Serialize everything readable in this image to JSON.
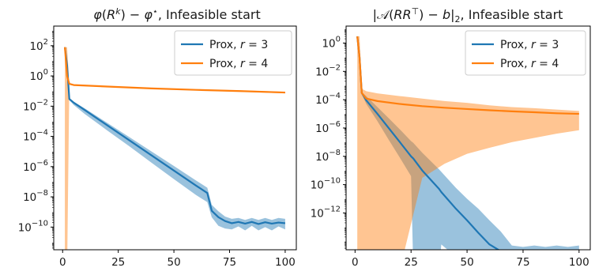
{
  "chart_data": [
    {
      "type": "line",
      "title": "φ(R^k) − φ*, Infeasible start",
      "xlabel": "",
      "ylabel": "",
      "yscale": "log",
      "xlim": [
        -4,
        105
      ],
      "ylim_log10": [
        -11.5,
        3.3
      ],
      "xticks": [
        0,
        25,
        50,
        75,
        100
      ],
      "yticks_log10": [
        2,
        0,
        -2,
        -4,
        -6,
        -8,
        -10
      ],
      "grid": false,
      "legend_position": "upper right",
      "series": [
        {
          "name": "Prox, r = 3",
          "color": "#1f77b4",
          "band_alpha": 0.45,
          "x": [
            1,
            2,
            3,
            5,
            10,
            20,
            30,
            40,
            50,
            60,
            65,
            67,
            70,
            73,
            76,
            79,
            82,
            85,
            88,
            91,
            94,
            97,
            100
          ],
          "mean": [
            80,
            5,
            0.03,
            0.017,
            0.0055,
            0.00055,
            5.5e-05,
            5.5e-06,
            5.5e-07,
            5.5e-08,
            1.8e-08,
            1.2e-09,
            4.5e-10,
            2.5e-10,
            1.8e-10,
            2.2e-10,
            1.7e-10,
            2.2e-10,
            1.6e-10,
            2.1e-10,
            1.7e-10,
            2e-10,
            1.8e-10
          ],
          "lower": [
            80,
            5,
            0.025,
            0.012,
            0.003,
            0.00025,
            2.2e-05,
            1.8e-06,
            1.5e-07,
            1.3e-08,
            4.5e-09,
            4.5e-10,
            1.2e-10,
            8e-11,
            7e-11,
            1.1e-10,
            6e-11,
            1.2e-10,
            6e-11,
            1e-10,
            6e-11,
            1.1e-10,
            7e-11
          ],
          "upper": [
            80,
            5,
            0.035,
            0.02,
            0.007,
            0.0008,
            9e-05,
            1e-05,
            1.1e-06,
            1.2e-07,
            4e-08,
            3e-09,
            1.1e-09,
            5e-10,
            3.5e-10,
            4e-10,
            3e-10,
            4e-10,
            3e-10,
            4e-10,
            3e-10,
            4e-10,
            3.5e-10
          ]
        },
        {
          "name": "Prox, r = 4",
          "color": "#ff7f0e",
          "band_alpha": 0.45,
          "x": [
            1,
            2,
            3,
            5,
            20,
            40,
            60,
            80,
            100
          ],
          "mean": [
            80,
            1,
            0.3,
            0.25,
            0.2,
            0.15,
            0.12,
            0.1,
            0.08
          ],
          "lower": [
            1e-13,
            1e-13,
            0.28,
            0.23,
            0.18,
            0.14,
            0.11,
            0.09,
            0.07
          ],
          "upper": [
            80,
            80,
            0.32,
            0.27,
            0.22,
            0.16,
            0.13,
            0.11,
            0.09
          ]
        }
      ]
    },
    {
      "type": "line",
      "title": "|𝒜(RR^⊤) − b|₂, Infeasible start",
      "xlabel": "",
      "ylabel": "",
      "yscale": "log",
      "xlim": [
        -4,
        105
      ],
      "ylim_log10": [
        -14.6,
        1.2
      ],
      "xticks": [
        0,
        25,
        50,
        75,
        100
      ],
      "yticks_log10": [
        0,
        -2,
        -4,
        -6,
        -8,
        -10,
        -12
      ],
      "grid": false,
      "legend_position": "upper right",
      "series": [
        {
          "name": "Prox, r = 3",
          "color": "#1f77b4",
          "band_alpha": 0.45,
          "x": [
            1,
            2,
            3,
            5,
            10,
            15,
            20,
            25,
            26,
            30,
            37.5,
            38.5,
            45,
            50,
            55,
            60,
            65,
            70,
            75,
            80,
            85,
            90,
            95,
            100
          ],
          "mean": [
            3,
            0.1,
            0.0003,
            9e-05,
            1e-05,
            1e-06,
            1e-07,
            1e-08,
            7e-09,
            1e-09,
            5e-11,
            3e-11,
            2e-12,
            3e-13,
            4e-14,
            6e-15,
            2e-15,
            1.8e-15,
            1.5e-15,
            1.8e-15,
            1.6e-15,
            1.7e-15,
            1.5e-15,
            1.7e-15
          ],
          "lower": [
            3,
            0.1,
            0.00025,
            5e-05,
            3e-06,
            1.5e-07,
            8e-09,
            4e-10,
            1e-16,
            1e-16,
            1e-16,
            6e-15,
            8e-16,
            1e-16,
            3e-17,
            8e-18,
            7e-16,
            6e-16,
            5e-16,
            7e-16,
            6e-16,
            7e-16,
            5e-16,
            7e-16
          ],
          "upper": [
            3,
            0.1,
            0.00035,
            0.00018,
            3e-05,
            5e-06,
            8e-07,
            1.2e-07,
            9e-08,
            1.8e-08,
            1.2e-09,
            8e-10,
            6e-11,
            1e-11,
            2e-12,
            3e-13,
            5e-14,
            5e-15,
            4e-15,
            5e-15,
            4e-15,
            5e-15,
            4e-15,
            5e-15
          ]
        },
        {
          "name": "Prox, r = 4",
          "color": "#ff7f0e",
          "band_alpha": 0.45,
          "x": [
            1,
            2,
            3,
            5,
            10,
            20,
            30,
            40,
            50,
            60,
            70,
            80,
            90,
            100
          ],
          "mean": [
            3,
            0.1,
            0.0003,
            0.00012,
            8e-05,
            5e-05,
            3.5e-05,
            2.7e-05,
            2.2e-05,
            1.8e-05,
            1.5e-05,
            1.3e-05,
            1.1e-05,
            1e-05
          ],
          "lower": [
            1e-16,
            1e-16,
            1e-16,
            1e-16,
            1e-16,
            1e-16,
            3e-10,
            3e-09,
            1.5e-08,
            4e-08,
            1e-07,
            2e-07,
            4e-07,
            7e-07
          ],
          "upper": [
            3,
            3,
            0.0006,
            0.0004,
            0.00028,
            0.00018,
            0.00012,
            8e-05,
            6e-05,
            4e-05,
            3e-05,
            2.5e-05,
            2e-05,
            1.6e-05
          ]
        }
      ]
    }
  ]
}
